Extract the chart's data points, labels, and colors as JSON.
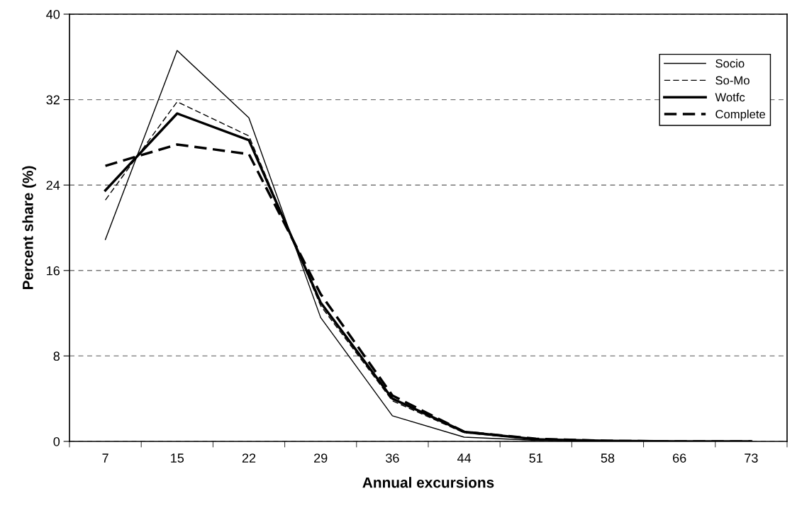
{
  "chart_data": {
    "type": "line",
    "xlabel": "Annual excursions",
    "ylabel": "Percent share (%)",
    "categories": [
      "7",
      "15",
      "22",
      "29",
      "36",
      "44",
      "51",
      "58",
      "66",
      "73"
    ],
    "series": [
      {
        "name": "Socio",
        "color": "#000000",
        "line_style": "solid",
        "values": [
          18.9,
          36.6,
          30.3,
          11.6,
          2.4,
          0.4,
          0.1,
          0.05,
          0,
          0
        ]
      },
      {
        "name": "So-Mo",
        "color": "#000000",
        "line_style": "dashed",
        "values": [
          22.6,
          31.8,
          28.6,
          12.7,
          3.8,
          0.8,
          0.2,
          0.05,
          0,
          0
        ]
      },
      {
        "name": "Wotfc",
        "color": "#000000",
        "line_style": "solid",
        "values": [
          23.5,
          30.7,
          28.2,
          13.0,
          4.0,
          0.9,
          0.2,
          0.05,
          0,
          0
        ]
      },
      {
        "name": "Complete",
        "color": "#000000",
        "line_style": "dashed",
        "values": [
          25.8,
          27.8,
          26.9,
          13.8,
          4.3,
          0.9,
          0.25,
          0.05,
          0,
          0
        ]
      }
    ],
    "ylim": [
      0,
      40
    ],
    "yticks": [
      0,
      8,
      16,
      24,
      32,
      40
    ],
    "grid": "y",
    "legend": "top right",
    "marker": "none"
  }
}
